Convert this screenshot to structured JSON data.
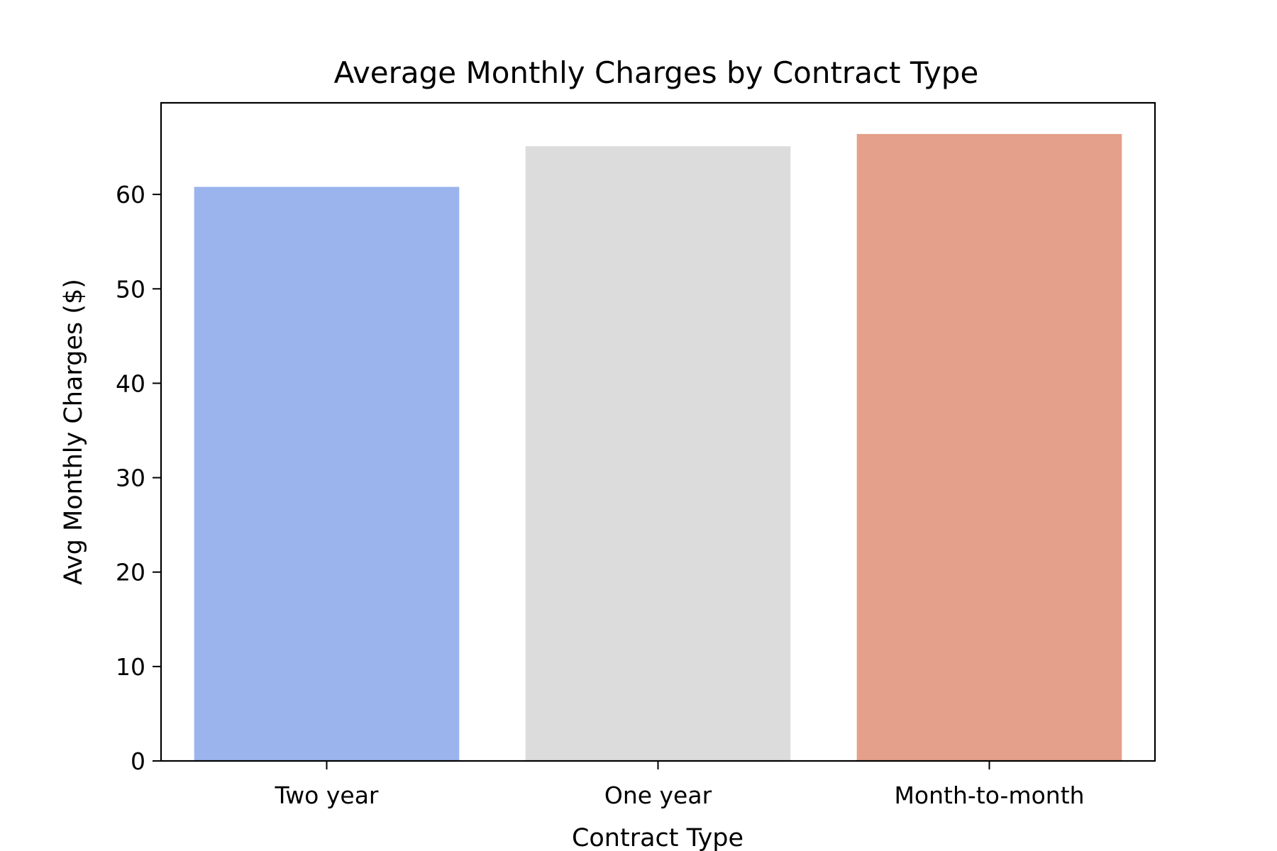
{
  "chart_data": {
    "type": "bar",
    "title": "Average Monthly Charges by Contract Type",
    "xlabel": "Contract Type",
    "ylabel": "Avg Monthly Charges ($)",
    "categories": [
      "Two year",
      "One year",
      "Month-to-month"
    ],
    "values": [
      60.8,
      65.1,
      66.4
    ],
    "colors": [
      "#9bb4ee",
      "#dcdcdc",
      "#e4a08a"
    ],
    "ylim": [
      0,
      69.7
    ],
    "yticks": [
      0,
      10,
      20,
      30,
      40,
      50,
      60
    ],
    "grid": false,
    "legend": "none"
  }
}
